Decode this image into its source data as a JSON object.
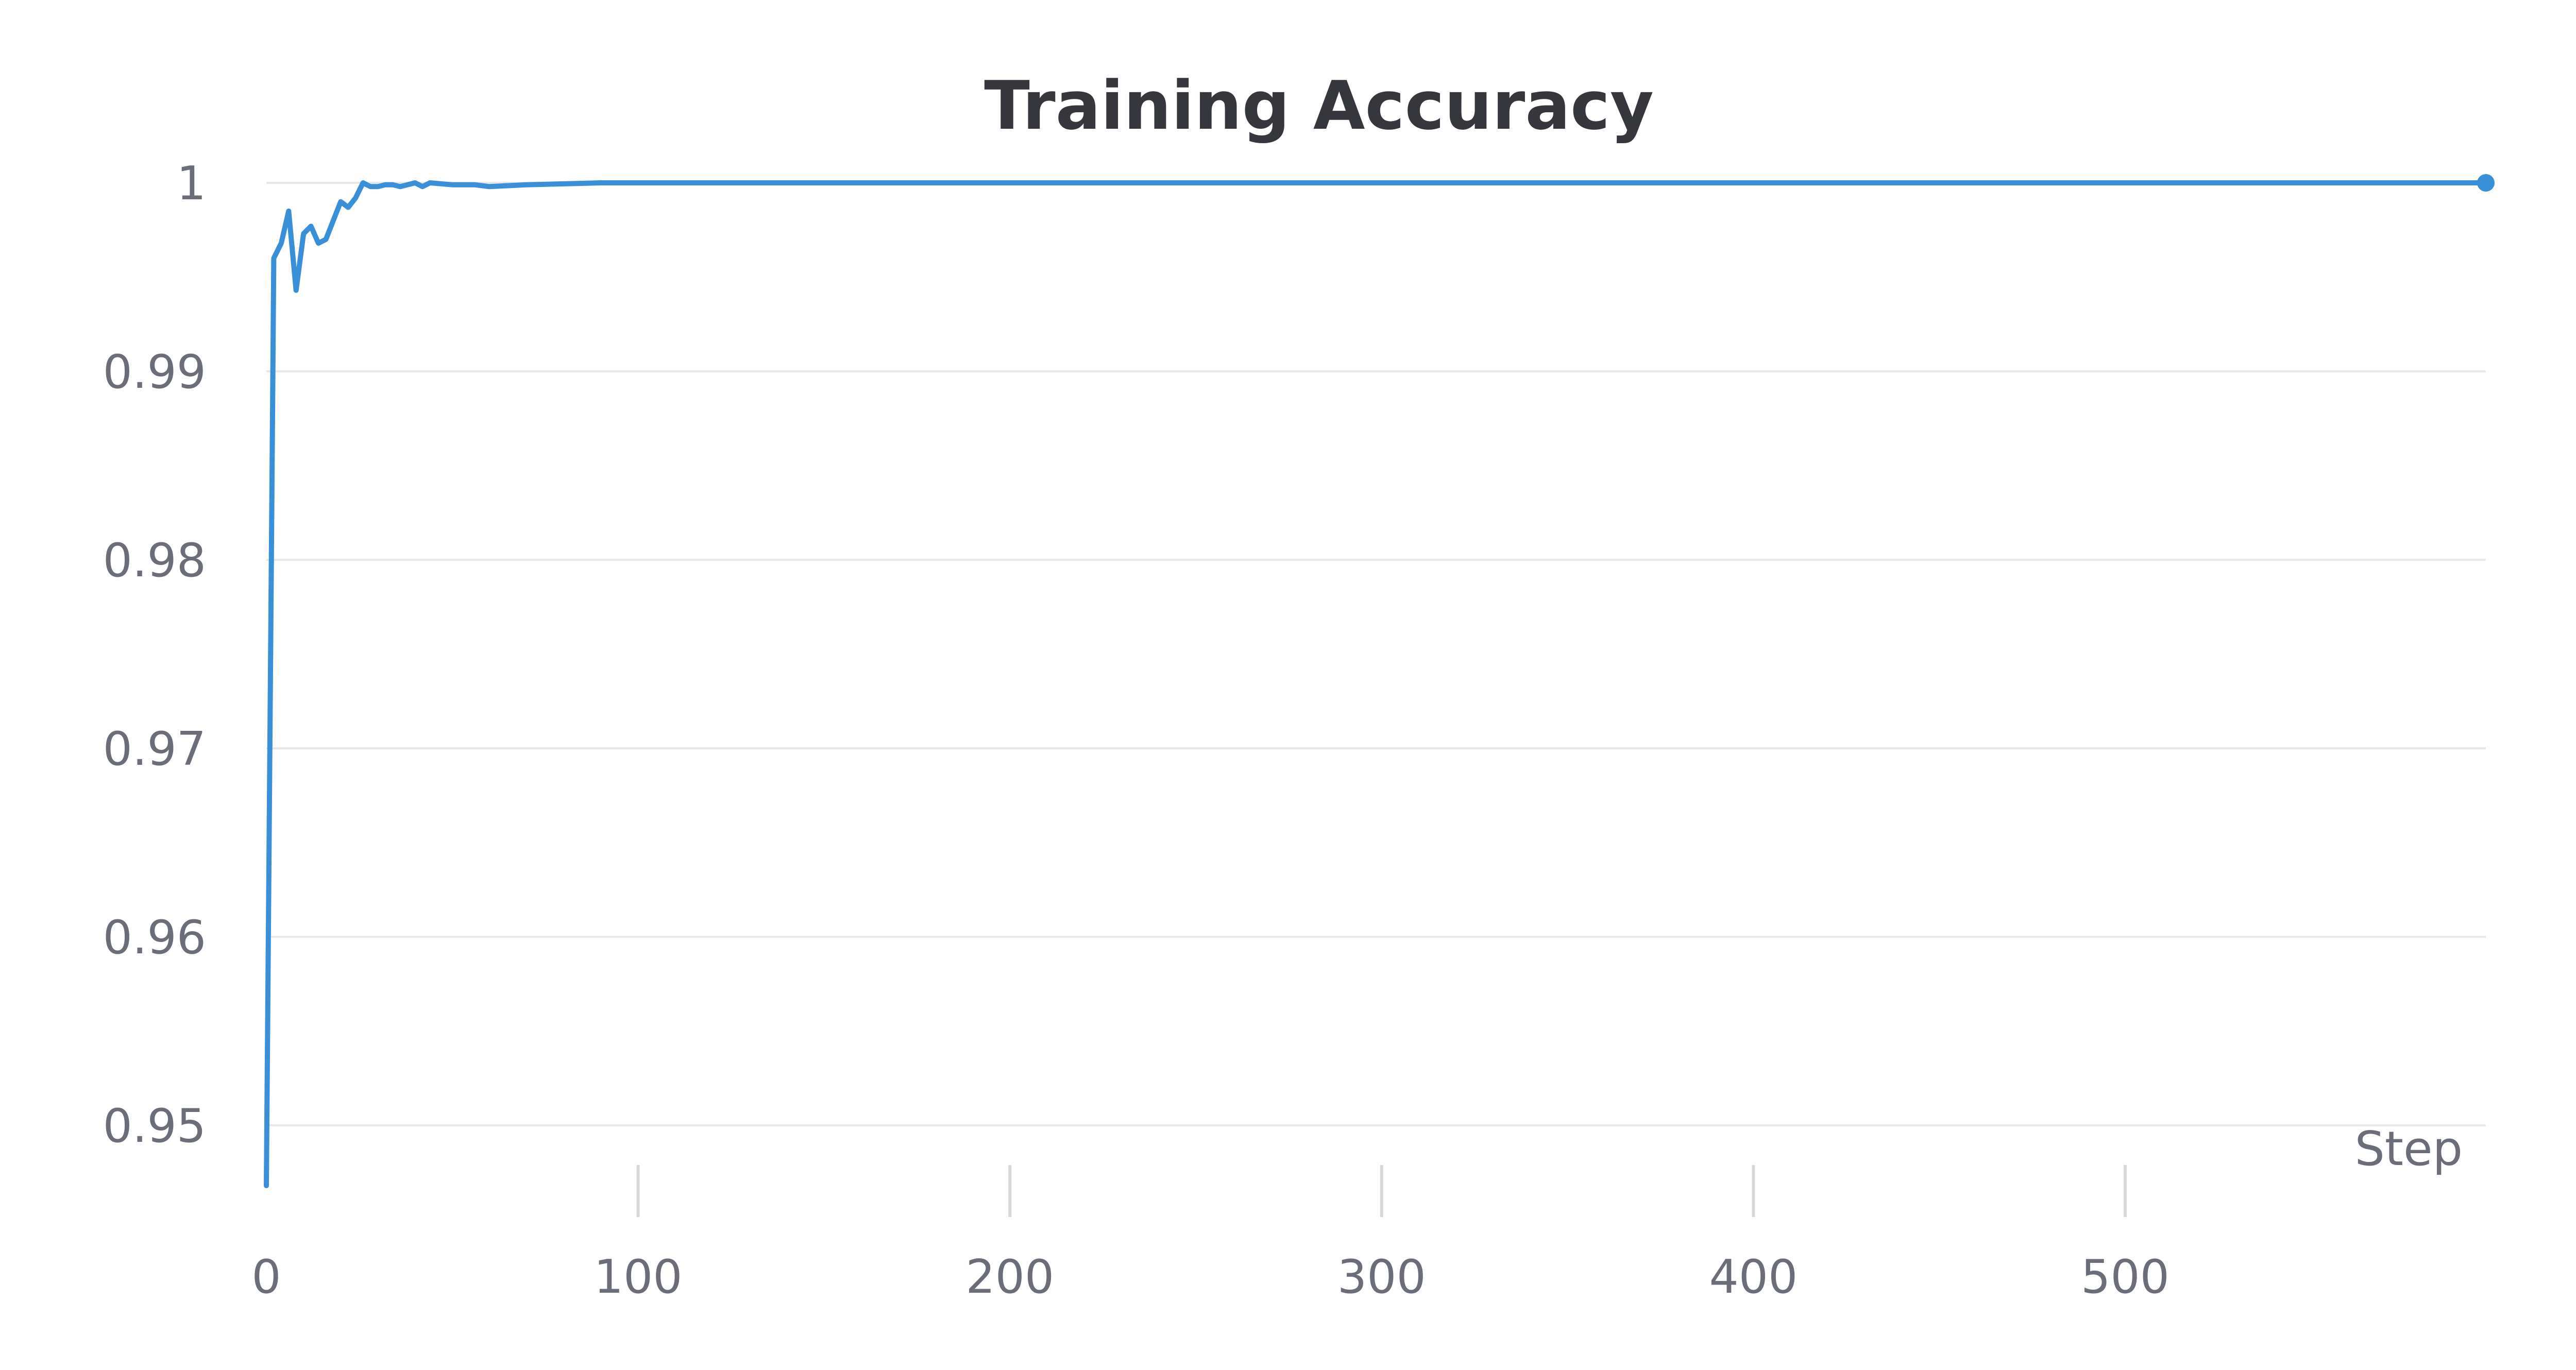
{
  "chart_data": {
    "type": "line",
    "title": "Training Accuracy",
    "xlabel": "Step",
    "ylabel": "",
    "xlim": [
      0,
      597
    ],
    "ylim": [
      0.9465,
      1.0
    ],
    "x_ticks": [
      0,
      100,
      200,
      300,
      400,
      500
    ],
    "y_ticks": [
      0.95,
      0.96,
      0.97,
      0.98,
      0.99,
      1
    ],
    "x_tick_labels": [
      "0",
      "100",
      "200",
      "300",
      "400",
      "500"
    ],
    "y_tick_labels": [
      "0.95",
      "0.96",
      "0.97",
      "0.98",
      "0.99",
      "1"
    ],
    "grid": true,
    "series": [
      {
        "color": "#3a8fd9",
        "x": [
          0,
          2,
          4,
          6,
          8,
          10,
          12,
          14,
          16,
          18,
          20,
          22,
          24,
          26,
          28,
          30,
          32,
          34,
          36,
          38,
          40,
          42,
          44,
          50,
          56,
          60,
          70,
          90,
          120,
          150,
          200,
          250,
          300,
          350,
          400,
          450,
          500,
          550,
          597
        ],
        "y": [
          0.9468,
          0.996,
          0.9968,
          0.9985,
          0.9943,
          0.9973,
          0.9977,
          0.9968,
          0.997,
          0.998,
          0.999,
          0.9987,
          0.9992,
          1.0,
          0.9998,
          0.9998,
          0.9999,
          0.9999,
          0.9998,
          0.9999,
          1.0,
          0.9998,
          1.0,
          0.9999,
          0.9999,
          0.9998,
          0.9999,
          1.0,
          1.0,
          1.0,
          1.0,
          1.0,
          1.0,
          1.0,
          1.0,
          1.0,
          1.0,
          1.0,
          1.0
        ]
      }
    ]
  }
}
